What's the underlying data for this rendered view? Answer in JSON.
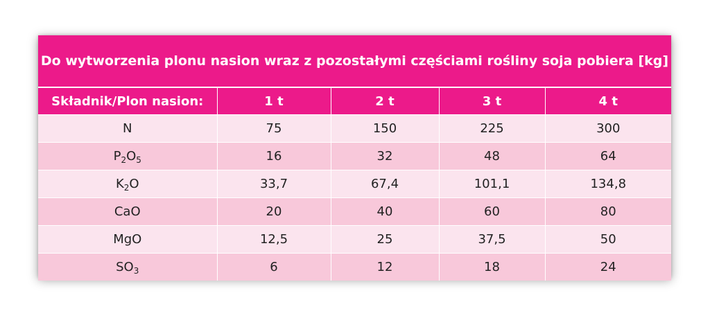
{
  "title": "Do wytworzenia plonu nasion wraz z pozostałymi częściami rośliny soja pobiera [kg]",
  "header": [
    "Składnik/Plon nasion:",
    "1 t",
    "2 t",
    "3 t",
    "4 t"
  ],
  "rows": [
    {
      "component": {
        "base": "N"
      },
      "values": [
        "75",
        "150",
        "225",
        "300"
      ]
    },
    {
      "component": {
        "base": "P",
        "sub1": "2",
        "mid": "O",
        "sub2": "5"
      },
      "values": [
        "16",
        "32",
        "48",
        "64"
      ]
    },
    {
      "component": {
        "base": "K",
        "sub1": "2",
        "mid": "O"
      },
      "values": [
        "33,7",
        "67,4",
        "101,1",
        "134,8"
      ]
    },
    {
      "component": {
        "base": "CaO"
      },
      "values": [
        "20",
        "40",
        "60",
        "80"
      ]
    },
    {
      "component": {
        "base": "MgO"
      },
      "values": [
        "12,5",
        "25",
        "37,5",
        "50"
      ]
    },
    {
      "component": {
        "base": "SO",
        "sub1": "3"
      },
      "values": [
        "6",
        "12",
        "18",
        "24"
      ]
    }
  ],
  "colors": {
    "header": "#ec1a8a",
    "row_light": "#fbe4ee",
    "row_dark": "#f8c8da"
  }
}
